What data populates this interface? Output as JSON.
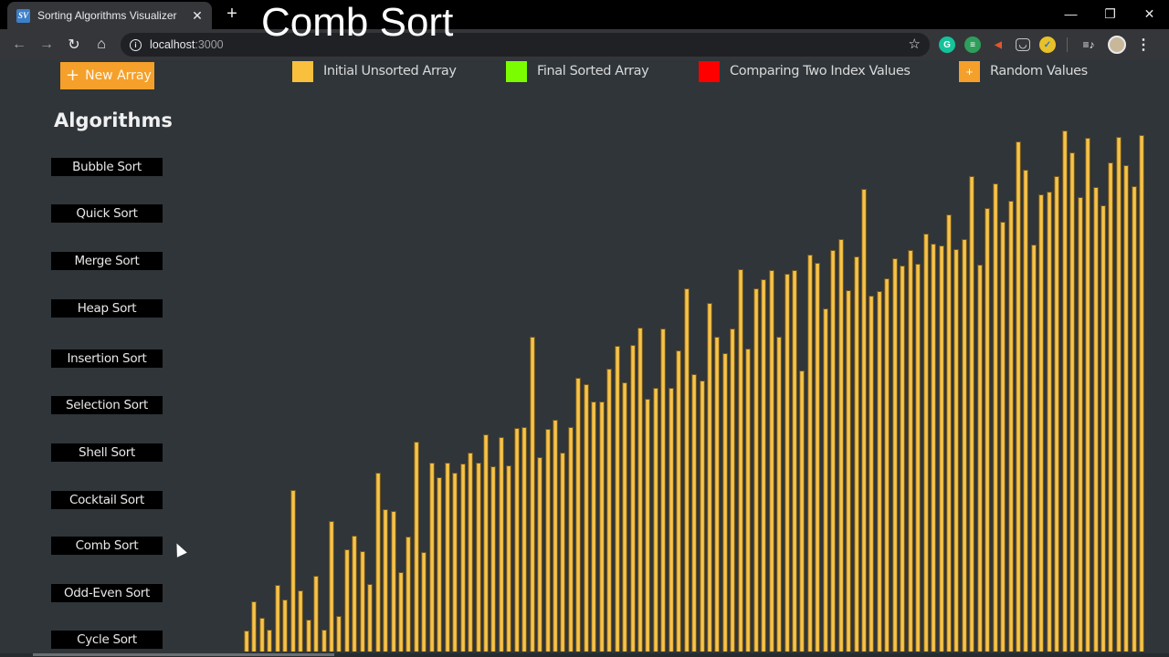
{
  "browser": {
    "tab_title": "Sorting Algorithms Visualizer",
    "tab_favicon": "SV",
    "tab_close": "✕",
    "new_tab": "+",
    "url_host": "localhost",
    "url_port": ":3000",
    "window_controls": {
      "minimize": "—",
      "restore": "❐",
      "close": "✕"
    },
    "nav": {
      "back": "←",
      "forward": "→",
      "reload": "↻",
      "home": "⌂"
    },
    "bookmark": "☆",
    "extensions": [
      {
        "name": "grammarly-icon",
        "glyph": "G",
        "color": "#15c39a"
      },
      {
        "name": "tab-manager-icon",
        "glyph": "≡",
        "color": "#2e9e5b"
      },
      {
        "name": "megaphone-icon",
        "glyph": "◀",
        "color": "#e2562b"
      },
      {
        "name": "pocket-icon",
        "glyph": "◡",
        "color": "#4a4d52"
      },
      {
        "name": "checkmark-icon",
        "glyph": "✓",
        "color": "#e8c12a"
      }
    ],
    "media_icon": "≡♪",
    "menu_icon": "⋮"
  },
  "video_overlay_title": "Comb Sort",
  "header": {
    "new_array_icon": "+",
    "new_array_label": "New Array"
  },
  "legend": [
    {
      "label": "Initial Unsorted Array",
      "color": "#f8c03c",
      "glyph": ""
    },
    {
      "label": "Final Sorted Array",
      "color": "#7cfc00",
      "glyph": ""
    },
    {
      "label": "Comparing Two Index Values",
      "color": "#ff0000",
      "glyph": ""
    },
    {
      "label": "Random Values",
      "color": "#f5a02a",
      "glyph": "+"
    }
  ],
  "sidebar": {
    "heading": "Algorithms",
    "algorithms": [
      "Bubble Sort",
      "Quick Sort",
      "Merge Sort",
      "Heap Sort",
      "Insertion Sort",
      "Selection Sort",
      "Shell Sort",
      "Cocktail Sort",
      "Comb Sort",
      "Odd-Even Sort",
      "Cycle Sort"
    ]
  },
  "chart_data": {
    "type": "bar",
    "title": "Comb Sort",
    "bar_color": "#f8c03c",
    "xlabel": "",
    "ylabel": "",
    "ylim": [
      0,
      580
    ],
    "grid": false,
    "legend_position": "top",
    "values": [
      23,
      55,
      37,
      24,
      73,
      57,
      177,
      67,
      35,
      83,
      24,
      143,
      39,
      112,
      127,
      110,
      74,
      196,
      156,
      154,
      87,
      126,
      230,
      109,
      207,
      191,
      207,
      196,
      206,
      218,
      207,
      238,
      203,
      235,
      204,
      245,
      246,
      345,
      213,
      244,
      254,
      218,
      246,
      300,
      293,
      274,
      274,
      310,
      335,
      295,
      336,
      355,
      277,
      289,
      354,
      289,
      330,
      398,
      304,
      297,
      382,
      345,
      327,
      354,
      419,
      332,
      398,
      408,
      418,
      345,
      414,
      418,
      308,
      435,
      426,
      376,
      440,
      452,
      396,
      433,
      507,
      390,
      395,
      409,
      431,
      423,
      440,
      425,
      458,
      447,
      445,
      479,
      441,
      452,
      521,
      424,
      486,
      513,
      471,
      494,
      559,
      528,
      446,
      501,
      504,
      521,
      571,
      547,
      498,
      563,
      509,
      489,
      536,
      564,
      533,
      510,
      566
    ]
  }
}
